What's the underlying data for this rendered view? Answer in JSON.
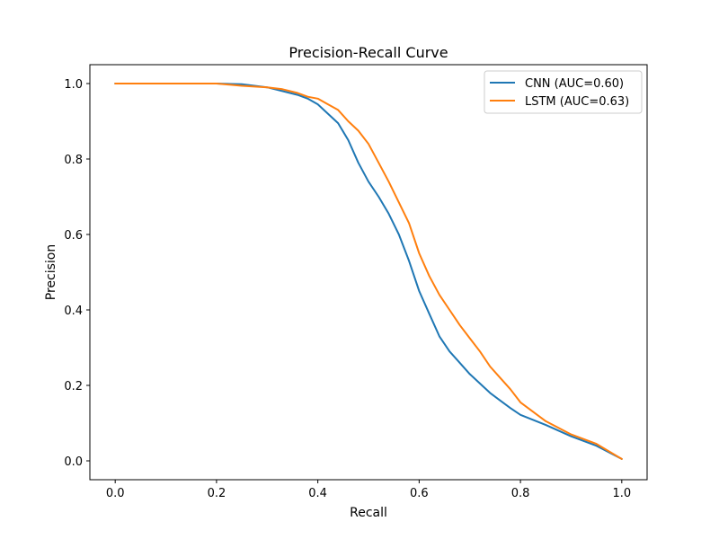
{
  "chart_data": {
    "type": "line",
    "title": "Precision-Recall Curve",
    "xlabel": "Recall",
    "ylabel": "Precision",
    "xlim": [
      -0.05,
      1.05
    ],
    "ylim": [
      -0.05,
      1.05
    ],
    "x_ticks": [
      0.0,
      0.2,
      0.4,
      0.6,
      0.8,
      1.0
    ],
    "x_tick_labels": [
      "0.0",
      "0.2",
      "0.4",
      "0.6",
      "0.8",
      "1.0"
    ],
    "y_ticks": [
      0.0,
      0.2,
      0.4,
      0.6,
      0.8,
      1.0
    ],
    "y_tick_labels": [
      "0.0",
      "0.2",
      "0.4",
      "0.6",
      "0.8",
      "1.0"
    ],
    "grid": false,
    "legend_position": "top-right",
    "series": [
      {
        "name": "CNN (AUC=0.60)",
        "color": "#1f77b4",
        "x": [
          0.0,
          0.1,
          0.2,
          0.25,
          0.3,
          0.33,
          0.36,
          0.38,
          0.4,
          0.42,
          0.44,
          0.46,
          0.48,
          0.5,
          0.52,
          0.54,
          0.56,
          0.58,
          0.6,
          0.62,
          0.64,
          0.66,
          0.68,
          0.7,
          0.72,
          0.74,
          0.76,
          0.78,
          0.8,
          0.85,
          0.9,
          0.95,
          1.0
        ],
        "y": [
          1.0,
          1.0,
          1.0,
          0.998,
          0.99,
          0.98,
          0.97,
          0.96,
          0.945,
          0.92,
          0.895,
          0.85,
          0.79,
          0.74,
          0.7,
          0.655,
          0.6,
          0.53,
          0.45,
          0.39,
          0.33,
          0.29,
          0.26,
          0.23,
          0.205,
          0.18,
          0.16,
          0.14,
          0.122,
          0.095,
          0.065,
          0.04,
          0.005
        ]
      },
      {
        "name": "LSTM (AUC=0.63)",
        "color": "#ff7f0e",
        "x": [
          0.0,
          0.1,
          0.2,
          0.25,
          0.3,
          0.33,
          0.36,
          0.38,
          0.4,
          0.42,
          0.44,
          0.46,
          0.48,
          0.5,
          0.52,
          0.54,
          0.56,
          0.58,
          0.6,
          0.62,
          0.64,
          0.66,
          0.68,
          0.7,
          0.72,
          0.74,
          0.76,
          0.78,
          0.8,
          0.85,
          0.9,
          0.95,
          1.0
        ],
        "y": [
          1.0,
          1.0,
          1.0,
          0.994,
          0.99,
          0.985,
          0.975,
          0.965,
          0.96,
          0.945,
          0.93,
          0.9,
          0.875,
          0.84,
          0.79,
          0.74,
          0.685,
          0.63,
          0.55,
          0.49,
          0.44,
          0.4,
          0.36,
          0.325,
          0.29,
          0.25,
          0.22,
          0.19,
          0.155,
          0.105,
          0.07,
          0.045,
          0.005
        ]
      }
    ]
  }
}
